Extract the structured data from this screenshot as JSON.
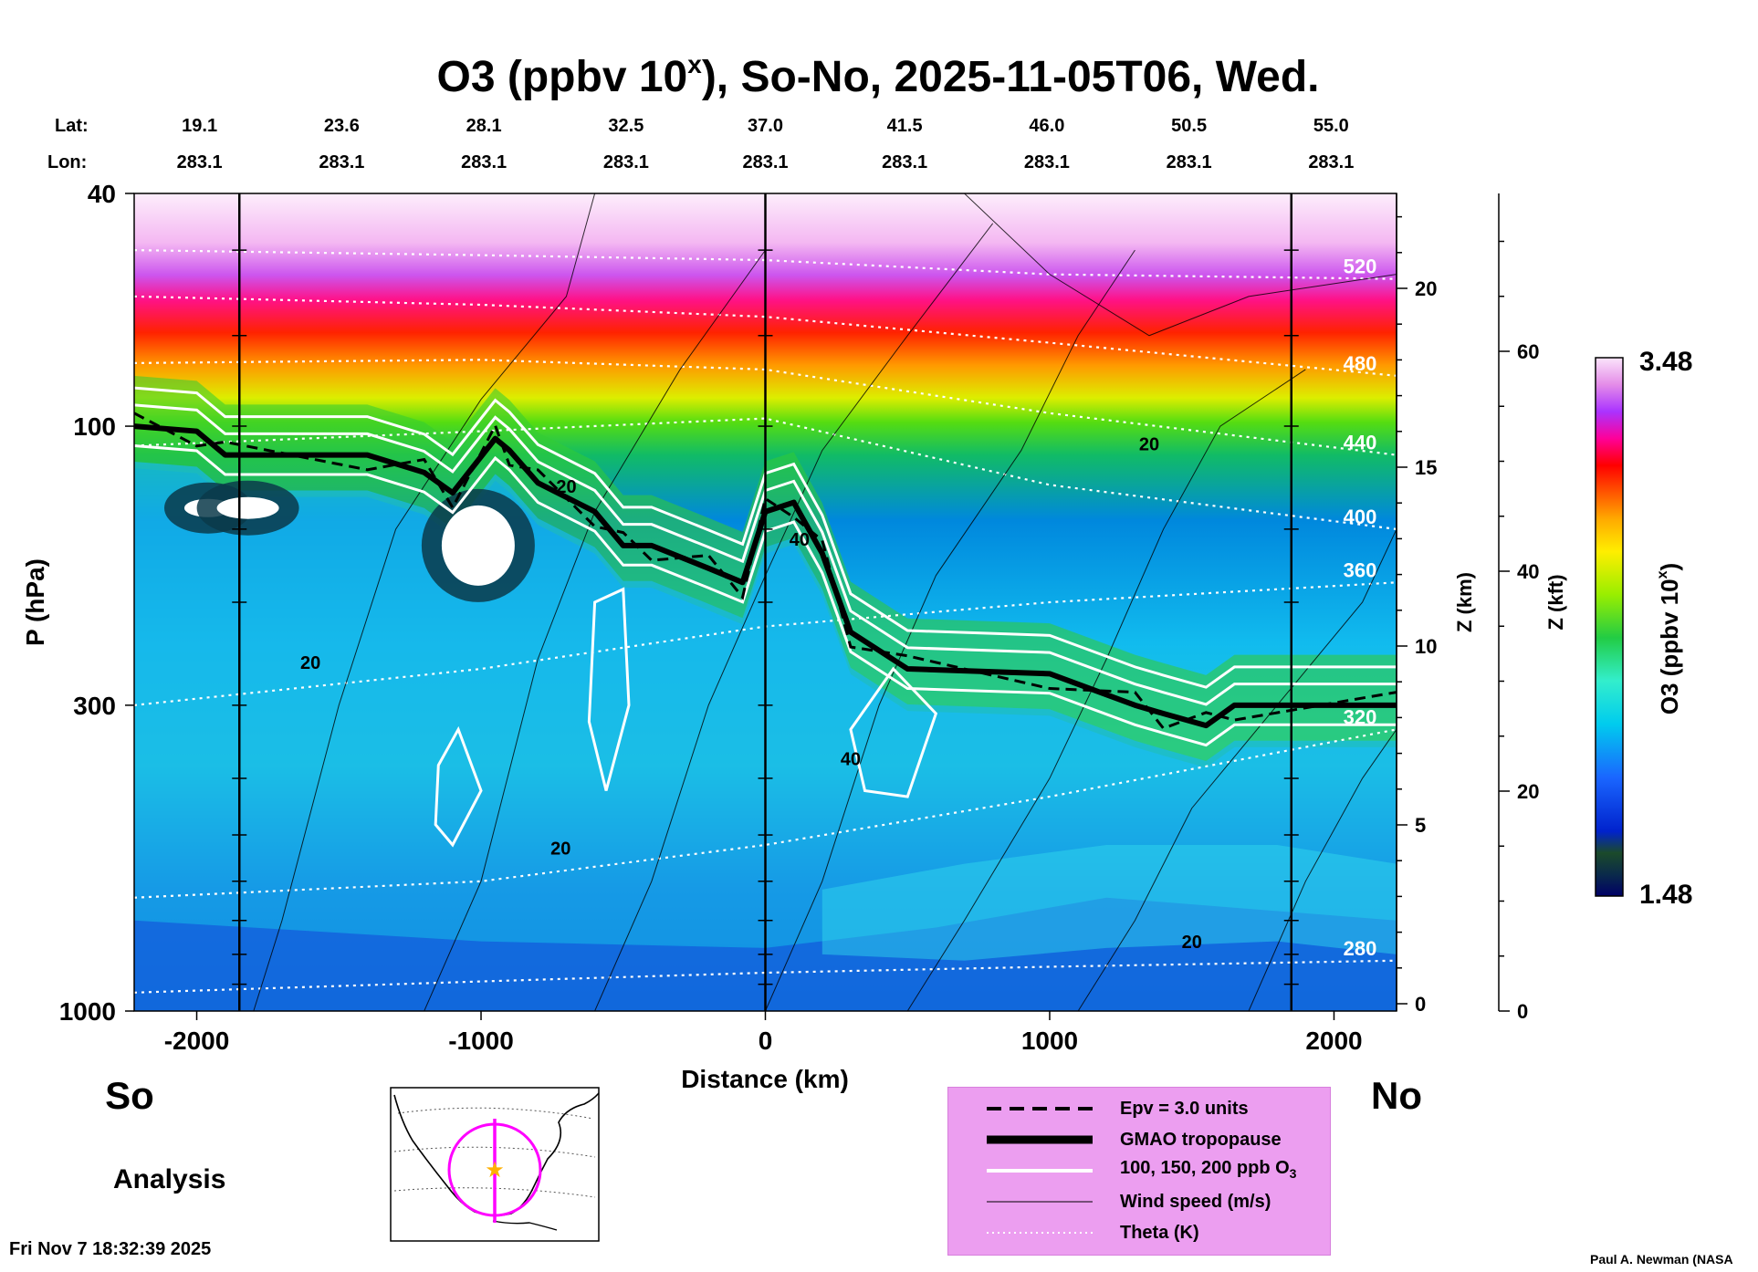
{
  "chart_data": {
    "type": "heatmap",
    "title_main": "O3 (ppbv 10",
    "title_sup": "x",
    "title_rest": "), So-No, 2025-11-05T06, Wed.",
    "xlabel": "Distance (km)",
    "ylabel": "P (hPa)",
    "z_km_label": "Z (km)",
    "z_kft_label": "Z (kft)",
    "colorbar_label": "O3 (ppbv 10",
    "colorbar_label_sup": "x",
    "colorbar_label_end": ")",
    "colorbar_range": [
      1.48,
      3.48
    ],
    "colorbar_max_label": "3.48",
    "colorbar_min_label": "1.48",
    "xlim": [
      -2220,
      2220
    ],
    "ylim_hpa": [
      1000,
      40
    ],
    "x_ticks": [
      -2000,
      -1000,
      0,
      1000,
      2000
    ],
    "x_tick_labels": [
      "-2000",
      "-1000",
      "0",
      "1000",
      "2000"
    ],
    "y_ticks_hpa": [
      40,
      100,
      300,
      1000
    ],
    "y_tick_labels": [
      "40",
      "100",
      "300",
      "1000"
    ],
    "z_km_ticks": [
      0,
      5,
      10,
      15,
      20
    ],
    "z_km_tick_labels": [
      "0",
      "5",
      "10",
      "15",
      "20"
    ],
    "z_kft_ticks": [
      0,
      20,
      40,
      60
    ],
    "z_kft_tick_labels": [
      "0",
      "20",
      "40",
      "60"
    ],
    "lat_label": "Lat:",
    "lon_label": "Lon:",
    "lat_values": [
      "19.1",
      "23.6",
      "28.1",
      "32.5",
      "37.0",
      "41.5",
      "46.0",
      "50.5",
      "55.0"
    ],
    "lon_values": [
      "283.1",
      "283.1",
      "283.1",
      "283.1",
      "283.1",
      "283.1",
      "283.1",
      "283.1",
      "283.1"
    ],
    "lat_lon_distances_km": [
      -1990,
      -1490,
      -990,
      -490,
      0,
      490,
      990,
      1490,
      1990
    ],
    "vertical_markers_km": [
      -1850,
      0,
      1850
    ],
    "left_end_label": "So",
    "right_end_label": "No",
    "theta_contours": [
      {
        "label": "280",
        "hpa": [
          930,
          890,
          860,
          840,
          820
        ],
        "x": [
          -2220,
          -1000,
          0,
          1000,
          2220
        ]
      },
      {
        "label": "320",
        "hpa": [
          640,
          600,
          520,
          430,
          330
        ],
        "x": [
          -2220,
          -1000,
          0,
          1000,
          2220
        ]
      },
      {
        "label": "360",
        "hpa": [
          300,
          260,
          220,
          200,
          185
        ],
        "x": [
          -2220,
          -1000,
          0,
          1000,
          2220
        ]
      },
      {
        "label": "400",
        "hpa": [
          108,
          102,
          97,
          126,
          150
        ],
        "x": [
          -2220,
          -1000,
          0,
          1000,
          2220
        ]
      },
      {
        "label": "440",
        "hpa": [
          78,
          77,
          80,
          95,
          112
        ],
        "x": [
          -2220,
          -1000,
          0,
          1000,
          2220
        ]
      },
      {
        "label": "480",
        "hpa": [
          60,
          62,
          65,
          72,
          82
        ],
        "x": [
          -2220,
          -1000,
          0,
          1000,
          2220
        ]
      },
      {
        "label": "520",
        "hpa": [
          50,
          51,
          52,
          55,
          56
        ],
        "x": [
          -2220,
          -1000,
          0,
          1000,
          2220
        ]
      }
    ],
    "tropopause_gmao": {
      "label": "GMAO tropopause",
      "x": [
        -2220,
        -2000,
        -1900,
        -1400,
        -1200,
        -1100,
        -950,
        -900,
        -800,
        -600,
        -500,
        -400,
        -200,
        -80,
        0,
        100,
        200,
        300,
        500,
        1000,
        1300,
        1400,
        1550,
        1650,
        2220
      ],
      "hpa": [
        100,
        102,
        112,
        112,
        120,
        130,
        105,
        110,
        125,
        140,
        160,
        160,
        175,
        185,
        140,
        135,
        165,
        225,
        260,
        265,
        300,
        310,
        325,
        300,
        300
      ]
    },
    "wind_labels": [
      {
        "label": "20",
        "x": 1350,
        "hpa": 110
      },
      {
        "label": "20",
        "x": -1600,
        "hpa": 260
      },
      {
        "label": "40",
        "x": 120,
        "hpa": 160
      },
      {
        "label": "40",
        "x": 300,
        "hpa": 380
      },
      {
        "label": "20",
        "x": -720,
        "hpa": 540
      },
      {
        "label": "20",
        "x": 1500,
        "hpa": 780
      },
      {
        "label": "20",
        "x": -700,
        "hpa": 130
      }
    ],
    "legend": [
      {
        "name": "Epv = 3.0 units",
        "style": "dashed"
      },
      {
        "name": "GMAO tropopause",
        "style": "thick"
      },
      {
        "name": "100, 150, 200 ppb O",
        "sub": "3",
        "style": "white"
      },
      {
        "name": "Wind speed (m/s)",
        "style": "thin"
      },
      {
        "name": "Theta (K)",
        "style": "dotted"
      }
    ]
  },
  "footer": {
    "mode_label": "Analysis",
    "timestamp": "Fri Nov  7 18:32:39 2025",
    "credit": "Paul A. Newman (NASA"
  },
  "colors": {
    "background": "#ffffff",
    "legend_bg": "#ec9ef0",
    "map_track": "#ff00ff",
    "map_star": "#ffb000"
  }
}
